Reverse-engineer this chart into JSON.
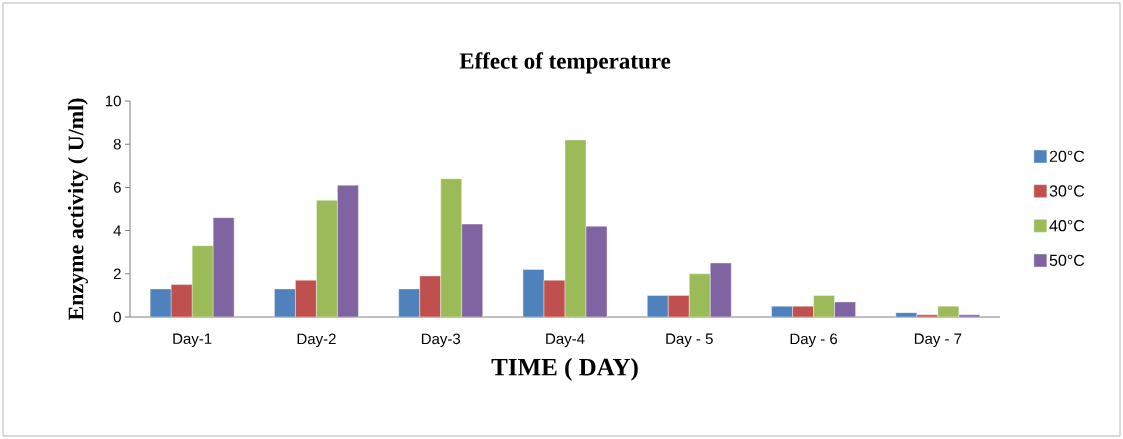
{
  "chart_data": {
    "type": "bar",
    "title": "Effect of temperature",
    "xlabel": "TIME ( DAY)",
    "ylabel": "Enzyme activity ( U/ml)",
    "categories": [
      "Day-1",
      "Day-2",
      "Day-3",
      "Day-4",
      "Day - 5",
      "Day - 6",
      "Day - 7"
    ],
    "series": [
      {
        "name": "20°C",
        "color": "#4f81bd",
        "values": [
          1.3,
          1.3,
          1.3,
          2.2,
          1.0,
          0.5,
          0.2
        ]
      },
      {
        "name": "30°C",
        "color": "#c0504d",
        "values": [
          1.5,
          1.7,
          1.9,
          1.7,
          1.0,
          0.5,
          0.1
        ]
      },
      {
        "name": "40°C",
        "color": "#9bbb59",
        "values": [
          3.3,
          5.4,
          6.4,
          8.2,
          2.0,
          1.0,
          0.5
        ]
      },
      {
        "name": "50°C",
        "color": "#8064a2",
        "values": [
          4.6,
          6.1,
          4.3,
          4.2,
          2.5,
          0.7,
          0.1
        ]
      }
    ],
    "ylim": [
      0,
      10
    ],
    "yticks": [
      0,
      2,
      4,
      6,
      8,
      10
    ],
    "grid": false,
    "legend": "right"
  }
}
